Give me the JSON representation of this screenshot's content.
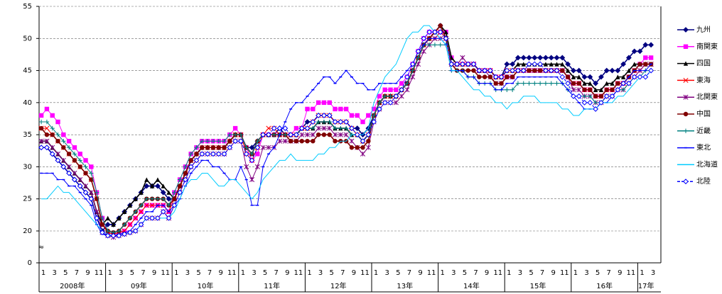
{
  "chart_data": {
    "type": "line",
    "categories": [
      "1",
      null,
      "3",
      null,
      "5",
      null,
      "7",
      null,
      "9",
      null,
      "11",
      null,
      "1",
      null,
      "3",
      null,
      "5",
      null,
      "7",
      null,
      "9",
      null,
      "11",
      null,
      "1",
      null,
      "3",
      null,
      "5",
      null,
      "7",
      null,
      "9",
      null,
      "11",
      null,
      "1",
      null,
      "3",
      null,
      "5",
      null,
      "7",
      null,
      "9",
      null,
      "11",
      null,
      "1",
      null,
      "3",
      null,
      "5",
      null,
      "7",
      null,
      "9",
      null,
      "11",
      null,
      "1",
      null,
      "3",
      null,
      "5",
      null,
      "7",
      null,
      "9",
      null,
      "11",
      null,
      "1",
      null,
      "3",
      null,
      "5",
      null,
      "7",
      null,
      "9",
      null,
      "11",
      null,
      "1",
      null,
      "3",
      null,
      "5",
      null,
      "7",
      null,
      "9",
      null,
      "11",
      null,
      "1",
      null,
      "3",
      null,
      "5",
      null,
      "7",
      null,
      "9",
      null,
      "11",
      null,
      "1",
      null,
      "3"
    ],
    "years": [
      "2008年",
      "09年",
      "10年",
      "11年",
      "12年",
      "13年",
      "14年",
      "15年",
      "16年",
      "17年"
    ],
    "ylim": [
      0,
      55
    ],
    "y_break": [
      0,
      20
    ],
    "yticks": [
      0,
      20,
      25,
      30,
      35,
      40,
      45,
      50,
      55
    ],
    "grid": true,
    "legend": "right",
    "series": [
      {
        "name": "九州",
        "color": "#000080",
        "marker": "diamond",
        "values": [
          33,
          33,
          32,
          31,
          30,
          29,
          28,
          27,
          26,
          25,
          22,
          20,
          21,
          21,
          22,
          23,
          24,
          25,
          26,
          27,
          27,
          27,
          26,
          25,
          25,
          27,
          29,
          31,
          32,
          33,
          33,
          33,
          33,
          33,
          34,
          35,
          35,
          33,
          33,
          34,
          35,
          35,
          35,
          36,
          35,
          35,
          35,
          36,
          37,
          37,
          38,
          38,
          38,
          37,
          37,
          37,
          36,
          36,
          35,
          36,
          38,
          40,
          41,
          41,
          41,
          42,
          43,
          45,
          47,
          49,
          50,
          51,
          52,
          50,
          46,
          46,
          46,
          46,
          46,
          45,
          45,
          45,
          44,
          44,
          46,
          46,
          47,
          47,
          47,
          47,
          47,
          47,
          47,
          47,
          47,
          46,
          45,
          45,
          44,
          44,
          43,
          44,
          45,
          45,
          45,
          46,
          47,
          48,
          48,
          49,
          49
        ]
      },
      {
        "name": "南関東",
        "color": "#ff00ff",
        "marker": "square",
        "values": [
          38,
          39,
          38,
          37,
          35,
          34,
          33,
          32,
          31,
          30,
          26,
          22,
          19,
          18,
          19,
          20,
          21,
          22,
          23,
          24,
          24,
          24,
          24,
          23,
          26,
          28,
          30,
          32,
          33,
          34,
          34,
          34,
          34,
          34,
          35,
          36,
          35,
          33,
          31,
          32,
          35,
          35,
          35,
          35,
          35,
          35,
          36,
          36,
          39,
          39,
          40,
          40,
          40,
          39,
          39,
          39,
          38,
          38,
          37,
          38,
          39,
          41,
          42,
          42,
          42,
          43,
          44,
          46,
          48,
          50,
          51,
          51,
          51,
          51,
          47,
          46,
          46,
          46,
          46,
          45,
          45,
          45,
          44,
          44,
          44,
          44,
          45,
          45,
          45,
          45,
          45,
          45,
          45,
          45,
          45,
          44,
          43,
          43,
          42,
          42,
          41,
          41,
          42,
          42,
          43,
          43,
          44,
          45,
          46,
          47,
          47
        ]
      },
      {
        "name": "四国",
        "color": "#000000",
        "marker": "triangle",
        "values": [
          34,
          34,
          33,
          32,
          31,
          30,
          29,
          28,
          27,
          26,
          23,
          21,
          22,
          21,
          22,
          23,
          24,
          25,
          26,
          28,
          27,
          28,
          27,
          26,
          25,
          27,
          29,
          31,
          32,
          33,
          33,
          33,
          33,
          33,
          34,
          35,
          35,
          33,
          32,
          34,
          35,
          35,
          35,
          35,
          35,
          35,
          35,
          36,
          36,
          36,
          37,
          37,
          37,
          36,
          36,
          36,
          35,
          35,
          34,
          35,
          38,
          40,
          41,
          41,
          41,
          42,
          43,
          45,
          47,
          49,
          50,
          51,
          52,
          51,
          47,
          46,
          46,
          46,
          46,
          45,
          45,
          45,
          44,
          44,
          45,
          45,
          46,
          46,
          46,
          46,
          46,
          46,
          46,
          46,
          46,
          45,
          44,
          44,
          43,
          43,
          42,
          42,
          43,
          43,
          44,
          44,
          45,
          46,
          46,
          46,
          46
        ]
      },
      {
        "name": "東海",
        "color": "#ff0000",
        "marker": "x",
        "values": [
          36,
          36,
          35,
          34,
          33,
          32,
          31,
          30,
          29,
          28,
          25,
          21,
          19,
          18,
          19,
          20,
          21,
          22,
          23,
          24,
          24,
          24,
          24,
          23,
          25,
          27,
          29,
          31,
          32,
          33,
          33,
          33,
          33,
          33,
          34,
          35,
          35,
          32,
          31,
          33,
          35,
          36,
          36,
          35,
          35,
          35,
          35,
          36,
          36,
          37,
          38,
          38,
          38,
          37,
          37,
          37,
          36,
          35,
          34,
          35,
          38,
          40,
          41,
          41,
          41,
          42,
          43,
          45,
          47,
          49,
          50,
          50,
          51,
          50,
          46,
          46,
          46,
          46,
          46,
          45,
          45,
          45,
          44,
          44,
          45,
          45,
          45,
          45,
          45,
          45,
          45,
          45,
          45,
          45,
          45,
          44,
          43,
          43,
          42,
          42,
          41,
          41,
          42,
          42,
          43,
          43,
          44,
          45,
          45,
          46,
          46
        ]
      },
      {
        "name": "北関東",
        "color": "#800080",
        "marker": "star",
        "values": [
          34,
          34,
          33,
          32,
          31,
          30,
          29,
          28,
          27,
          26,
          23,
          19,
          17,
          16,
          17,
          18,
          19,
          20,
          21,
          22,
          22,
          22,
          23,
          22,
          24,
          26,
          28,
          30,
          31,
          32,
          32,
          32,
          32,
          32,
          33,
          34,
          34,
          30,
          28,
          30,
          33,
          33,
          33,
          34,
          34,
          34,
          34,
          35,
          35,
          35,
          36,
          36,
          36,
          35,
          35,
          35,
          34,
          33,
          32,
          33,
          37,
          39,
          40,
          40,
          40,
          41,
          42,
          44,
          46,
          48,
          49,
          50,
          50,
          50,
          46,
          46,
          47,
          46,
          46,
          45,
          45,
          44,
          43,
          43,
          44,
          44,
          45,
          45,
          45,
          45,
          45,
          45,
          45,
          45,
          45,
          44,
          42,
          42,
          41,
          41,
          40,
          40,
          41,
          41,
          42,
          42,
          43,
          44,
          45,
          46,
          46
        ]
      },
      {
        "name": "中国",
        "color": "#800000",
        "marker": "circle",
        "values": [
          36,
          35,
          35,
          34,
          33,
          32,
          31,
          30,
          29,
          28,
          25,
          21,
          20,
          19,
          20,
          21,
          22,
          23,
          24,
          25,
          25,
          25,
          25,
          24,
          25,
          27,
          29,
          31,
          32,
          33,
          33,
          33,
          33,
          33,
          34,
          35,
          35,
          33,
          32,
          34,
          35,
          35,
          35,
          35,
          35,
          34,
          34,
          34,
          34,
          34,
          35,
          35,
          35,
          34,
          34,
          34,
          33,
          33,
          33,
          34,
          38,
          40,
          41,
          41,
          41,
          42,
          43,
          45,
          47,
          49,
          50,
          51,
          52,
          50,
          46,
          45,
          45,
          45,
          45,
          44,
          44,
          44,
          43,
          43,
          44,
          44,
          45,
          45,
          45,
          45,
          45,
          45,
          45,
          45,
          45,
          44,
          43,
          43,
          42,
          42,
          41,
          41,
          42,
          42,
          43,
          43,
          44,
          45,
          46,
          46,
          46
        ]
      },
      {
        "name": "近畿",
        "color": "#008080",
        "marker": "plus",
        "values": [
          37,
          37,
          36,
          35,
          34,
          33,
          32,
          31,
          30,
          29,
          26,
          22,
          20,
          19,
          20,
          21,
          22,
          23,
          24,
          25,
          25,
          25,
          25,
          24,
          26,
          28,
          30,
          32,
          33,
          34,
          34,
          34,
          34,
          34,
          35,
          35,
          35,
          33,
          32,
          34,
          35,
          35,
          35,
          35,
          35,
          35,
          35,
          36,
          36,
          36,
          37,
          37,
          37,
          36,
          36,
          36,
          35,
          35,
          34,
          35,
          38,
          40,
          41,
          41,
          41,
          42,
          43,
          45,
          47,
          49,
          49,
          49,
          49,
          49,
          45,
          45,
          45,
          44,
          44,
          43,
          43,
          43,
          42,
          42,
          42,
          42,
          43,
          43,
          43,
          43,
          43,
          43,
          43,
          43,
          43,
          42,
          41,
          41,
          41,
          41,
          40,
          40,
          41,
          41,
          42,
          42,
          43,
          44,
          44,
          45,
          45
        ]
      },
      {
        "name": "東北",
        "color": "#0000ff",
        "marker": "dash",
        "values": [
          29,
          29,
          29,
          28,
          28,
          27,
          27,
          26,
          25,
          24,
          21,
          18,
          17,
          17,
          18,
          19,
          20,
          21,
          22,
          23,
          23,
          24,
          24,
          23,
          24,
          25,
          27,
          29,
          30,
          31,
          31,
          30,
          30,
          29,
          28,
          28,
          30,
          28,
          24,
          24,
          30,
          32,
          33,
          35,
          37,
          39,
          40,
          40,
          41,
          42,
          43,
          44,
          44,
          43,
          44,
          45,
          44,
          43,
          43,
          42,
          42,
          43,
          43,
          43,
          43,
          44,
          45,
          46,
          48,
          49,
          50,
          50,
          50,
          49,
          45,
          45,
          45,
          44,
          44,
          43,
          43,
          43,
          42,
          42,
          43,
          43,
          44,
          44,
          44,
          44,
          44,
          44,
          44,
          44,
          43,
          42,
          41,
          40,
          39,
          39,
          39,
          40,
          40,
          41,
          42,
          43,
          44,
          45,
          45,
          45,
          46
        ]
      },
      {
        "name": "北海道",
        "color": "#00ccff",
        "marker": "none",
        "values": [
          25,
          25,
          26,
          27,
          26,
          26,
          25,
          24,
          23,
          22,
          21,
          20,
          18,
          17,
          17,
          18,
          19,
          20,
          21,
          22,
          22,
          22,
          22,
          22,
          23,
          25,
          27,
          28,
          28,
          29,
          29,
          28,
          27,
          27,
          28,
          28,
          27,
          26,
          25,
          26,
          28,
          29,
          30,
          31,
          31,
          32,
          31,
          31,
          31,
          31,
          32,
          32,
          33,
          33,
          34,
          34,
          35,
          35,
          35,
          36,
          40,
          42,
          44,
          45,
          46,
          48,
          50,
          51,
          51,
          52,
          52,
          51,
          50,
          49,
          45,
          45,
          44,
          43,
          42,
          42,
          41,
          41,
          40,
          40,
          39,
          40,
          40,
          41,
          41,
          41,
          40,
          40,
          40,
          40,
          39,
          39,
          38,
          38,
          39,
          39,
          39,
          40,
          40,
          40,
          41,
          41,
          42,
          43,
          44,
          44,
          45
        ]
      },
      {
        "name": "北陸",
        "color": "#0000ff",
        "marker": "opendiamond",
        "dashed": true,
        "values": [
          33,
          33,
          32,
          31,
          30,
          29,
          28,
          27,
          26,
          25,
          22,
          19,
          17,
          17,
          17,
          18,
          19,
          20,
          21,
          22,
          22,
          22,
          23,
          22,
          24,
          26,
          28,
          30,
          31,
          32,
          32,
          32,
          32,
          32,
          33,
          34,
          34,
          32,
          31,
          33,
          35,
          35,
          36,
          36,
          36,
          35,
          35,
          36,
          36,
          37,
          38,
          38,
          38,
          37,
          37,
          37,
          36,
          35,
          34,
          35,
          37,
          39,
          40,
          40,
          41,
          42,
          44,
          46,
          48,
          50,
          51,
          51,
          51,
          50,
          46,
          46,
          46,
          46,
          46,
          45,
          45,
          45,
          44,
          44,
          45,
          45,
          45,
          45,
          46,
          46,
          46,
          45,
          45,
          45,
          44,
          43,
          41,
          41,
          40,
          40,
          39,
          40,
          41,
          41,
          42,
          43,
          43,
          44,
          44,
          44,
          45
        ]
      }
    ]
  }
}
